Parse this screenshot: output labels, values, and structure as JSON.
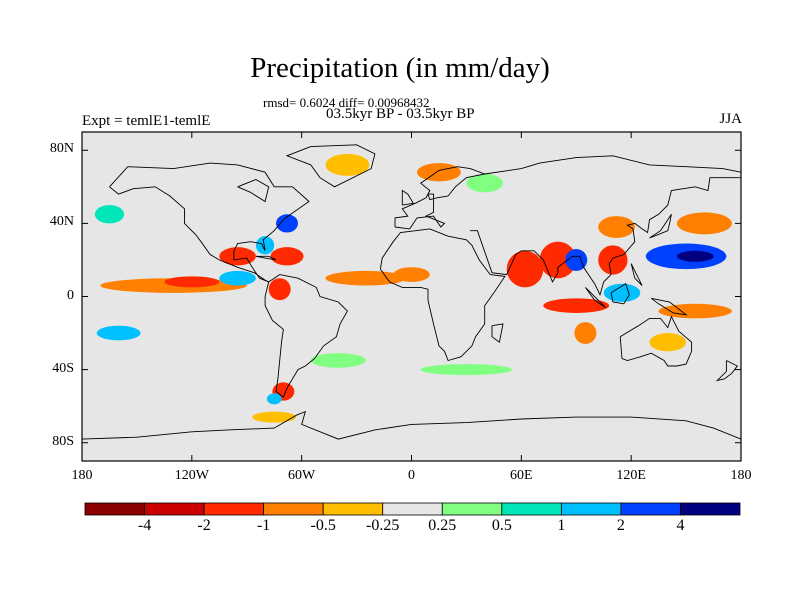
{
  "title": "Precipitation (in mm/day)",
  "stats_line": "rmsd= 0.6024 diff= 0.00968432",
  "period_line": "03.5kyr BP - 03.5kyr BP",
  "experiment_label": "Expt = temlE1-temlE",
  "season_label": "JJA",
  "map": {
    "background_color": "#e6e6e6",
    "lon_ticks": [
      {
        "label": "180",
        "lon": -180
      },
      {
        "label": "120W",
        "lon": -120
      },
      {
        "label": "60W",
        "lon": -60
      },
      {
        "label": "0",
        "lon": 0
      },
      {
        "label": "60E",
        "lon": 60
      },
      {
        "label": "120E",
        "lon": 120
      },
      {
        "label": "180",
        "lon": 180
      }
    ],
    "lat_ticks": [
      {
        "label": "80N",
        "lat": 80
      },
      {
        "label": "40N",
        "lat": 40
      },
      {
        "label": "0",
        "lat": 0
      },
      {
        "label": "40S",
        "lat": -40
      },
      {
        "label": "80S",
        "lat": -80
      }
    ],
    "anomaly_regions": [
      {
        "name": "north-pacific-wet",
        "lon": -165,
        "lat": 45,
        "rlon": 8,
        "rlat": 5,
        "level": 2
      },
      {
        "name": "central-america-dry",
        "lon": -95,
        "lat": 22,
        "rlon": 10,
        "rlat": 5,
        "level": -3
      },
      {
        "name": "caribbean-dry",
        "lon": -68,
        "lat": 22,
        "rlon": 9,
        "rlat": 5,
        "level": -3
      },
      {
        "name": "florida-wet",
        "lon": -80,
        "lat": 28,
        "rlon": 5,
        "rlat": 5,
        "level": 3
      },
      {
        "name": "us-east-wet",
        "lon": -68,
        "lat": 40,
        "rlon": 6,
        "rlat": 5,
        "level": 4
      },
      {
        "name": "itcz-pacific-dry",
        "lon": -130,
        "lat": 6,
        "rlon": 40,
        "rlat": 4,
        "level": -2
      },
      {
        "name": "itcz-pacific-strong-dry",
        "lon": -120,
        "lat": 8,
        "rlon": 15,
        "rlat": 3,
        "level": -3
      },
      {
        "name": "east-pacific-wet",
        "lon": -95,
        "lat": 10,
        "rlon": 10,
        "rlat": 4,
        "level": 3
      },
      {
        "name": "colombia-dry",
        "lon": -72,
        "lat": 4,
        "rlon": 6,
        "rlat": 6,
        "level": -3
      },
      {
        "name": "equatorial-atlantic-dry",
        "lon": -25,
        "lat": 10,
        "rlon": 22,
        "rlat": 4,
        "level": -2
      },
      {
        "name": "west-africa-dry",
        "lon": 0,
        "lat": 12,
        "rlon": 10,
        "rlat": 4,
        "level": -2
      },
      {
        "name": "greenland-dry",
        "lon": -35,
        "lat": 72,
        "rlon": 12,
        "rlat": 6,
        "level": -1
      },
      {
        "name": "europe-dry",
        "lon": 15,
        "lat": 68,
        "rlon": 12,
        "rlat": 5,
        "level": -2
      },
      {
        "name": "scandinavia-wet",
        "lon": 40,
        "lat": 62,
        "rlon": 10,
        "rlat": 5,
        "level": 1
      },
      {
        "name": "arabian-sea-dry",
        "lon": 62,
        "lat": 15,
        "rlon": 10,
        "rlat": 10,
        "level": -3
      },
      {
        "name": "india-dry",
        "lon": 80,
        "lat": 20,
        "rlon": 10,
        "rlat": 10,
        "level": -3
      },
      {
        "name": "bay-of-bengal-wet",
        "lon": 90,
        "lat": 20,
        "rlon": 6,
        "rlat": 6,
        "level": 4
      },
      {
        "name": "south-china-sea-dry",
        "lon": 110,
        "lat": 20,
        "rlon": 8,
        "rlat": 8,
        "level": -3
      },
      {
        "name": "china-dry",
        "lon": 112,
        "lat": 38,
        "rlon": 10,
        "rlat": 6,
        "level": -2
      },
      {
        "name": "western-pacific-wet",
        "lon": 150,
        "lat": 22,
        "rlon": 22,
        "rlat": 7,
        "level": 4
      },
      {
        "name": "western-pacific-core-wet",
        "lon": 155,
        "lat": 22,
        "rlon": 10,
        "rlat": 3,
        "level": 5
      },
      {
        "name": "north-pacific-east-dry",
        "lon": 160,
        "lat": 40,
        "rlon": 15,
        "rlat": 6,
        "level": -2
      },
      {
        "name": "indian-ocean-equatorial-dry",
        "lon": 90,
        "lat": -5,
        "rlon": 18,
        "rlat": 4,
        "level": -3
      },
      {
        "name": "maritime-continent-wet",
        "lon": 115,
        "lat": 2,
        "rlon": 10,
        "rlat": 5,
        "level": 3
      },
      {
        "name": "south-pacific-dry",
        "lon": 155,
        "lat": -8,
        "rlon": 20,
        "rlat": 4,
        "level": -2
      },
      {
        "name": "south-indian-dry",
        "lon": 95,
        "lat": -20,
        "rlon": 6,
        "rlat": 6,
        "level": -2
      },
      {
        "name": "australia-dry",
        "lon": 140,
        "lat": -25,
        "rlon": 10,
        "rlat": 5,
        "level": -1
      },
      {
        "name": "south-pacific-wet",
        "lon": -160,
        "lat": -20,
        "rlon": 12,
        "rlat": 4,
        "level": 3
      },
      {
        "name": "south-atlantic-wet",
        "lon": -40,
        "lat": -35,
        "rlon": 15,
        "rlat": 4,
        "level": 1
      },
      {
        "name": "patagonia-dry",
        "lon": -70,
        "lat": -52,
        "rlon": 6,
        "rlat": 5,
        "level": -3
      },
      {
        "name": "patagonia-wet",
        "lon": -75,
        "lat": -56,
        "rlon": 4,
        "rlat": 3,
        "level": 3
      },
      {
        "name": "southern-ocean-wet",
        "lon": 30,
        "lat": -40,
        "rlon": 25,
        "rlat": 3,
        "level": 1
      },
      {
        "name": "antarctic-coast-dry",
        "lon": -75,
        "lat": -66,
        "rlon": 12,
        "rlat": 3,
        "level": -1
      }
    ]
  },
  "colorbar": {
    "colors": [
      "#8b0000",
      "#cc0000",
      "#ff2a00",
      "#ff7f00",
      "#ffbf00",
      "#e6e6e6",
      "#80ff80",
      "#00e6b8",
      "#00c0ff",
      "#0040ff",
      "#000080"
    ],
    "labels": [
      "-4",
      "-2",
      "-1",
      "-0.5",
      "-0.25",
      "0.25",
      "0.5",
      "1",
      "2",
      "4"
    ]
  }
}
